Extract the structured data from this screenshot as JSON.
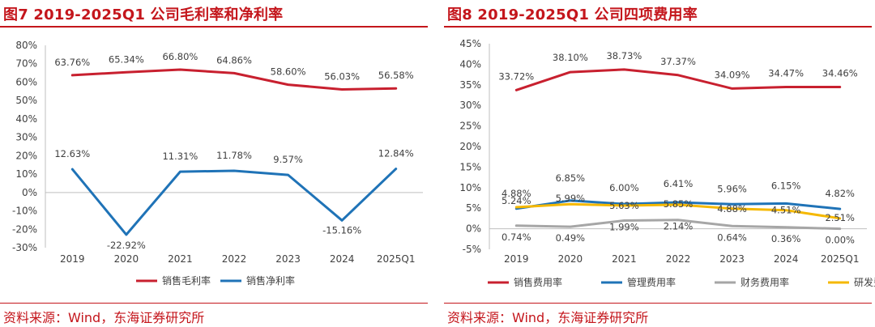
{
  "charts": [
    {
      "title": "图7  2019-2025Q1 公司毛利率和净利率",
      "source": "资料来源：Wind，东海证券研究所",
      "chart_data": {
        "type": "line",
        "categories": [
          "2019",
          "2020",
          "2021",
          "2022",
          "2023",
          "2024",
          "2025Q1"
        ],
        "ylim": [
          -30,
          80
        ],
        "ystep": 10,
        "yformat": "%",
        "grid": false,
        "legend_position": "bottom",
        "series": [
          {
            "name": "销售毛利率",
            "color": "#c8202f",
            "values": [
              63.76,
              65.34,
              66.8,
              64.86,
              58.6,
              56.03,
              56.58
            ],
            "labels": [
              "63.76%",
              "65.34%",
              "66.80%",
              "64.86%",
              "58.60%",
              "56.03%",
              "56.58%"
            ]
          },
          {
            "name": "销售净利率",
            "color": "#1f73b7",
            "values": [
              12.63,
              -22.92,
              11.31,
              11.78,
              9.57,
              -15.16,
              12.84
            ],
            "labels": [
              "12.63%",
              "-22.92%",
              "11.31%",
              "11.78%",
              "9.57%",
              "-15.16%",
              "12.84%"
            ]
          }
        ]
      }
    },
    {
      "title": "图8  2019-2025Q1 公司四项费用率",
      "source": "资料来源：Wind，东海证券研究所",
      "chart_data": {
        "type": "line",
        "categories": [
          "2019",
          "2020",
          "2021",
          "2022",
          "2023",
          "2024",
          "2025Q1"
        ],
        "ylim": [
          -5,
          45
        ],
        "ystep": 5,
        "yformat": "%",
        "grid": false,
        "legend_position": "bottom",
        "series": [
          {
            "name": "销售费用率",
            "color": "#c8202f",
            "values": [
              33.72,
              38.1,
              38.73,
              37.37,
              34.09,
              34.47,
              34.46
            ],
            "labels": [
              "33.72%",
              "38.10%",
              "38.73%",
              "37.37%",
              "34.09%",
              "34.47%",
              "34.46%"
            ]
          },
          {
            "name": "管理费用率",
            "color": "#1f73b7",
            "values": [
              4.88,
              6.85,
              6.0,
              6.41,
              5.96,
              6.15,
              4.82
            ],
            "labels": [
              "4.88%",
              "6.85%",
              "6.00%",
              "6.41%",
              "5.96%",
              "6.15%",
              "4.82%"
            ]
          },
          {
            "name": "财务费用率",
            "color": "#a6a6a6",
            "values": [
              0.74,
              0.49,
              1.99,
              2.14,
              0.64,
              0.36,
              0.0
            ],
            "labels": [
              "0.74%",
              "0.49%",
              "1.99%",
              "2.14%",
              "0.64%",
              "0.36%",
              "0.00%"
            ]
          },
          {
            "name": "研发费用率",
            "color": "#f5b800",
            "values": [
              5.24,
              5.99,
              5.63,
              5.85,
              4.88,
              4.51,
              2.51
            ],
            "labels": [
              "5.24%",
              "5.99%",
              "5.63%",
              "5.85%",
              "4.88%",
              "4.51%",
              "2.51%"
            ]
          }
        ]
      }
    }
  ]
}
